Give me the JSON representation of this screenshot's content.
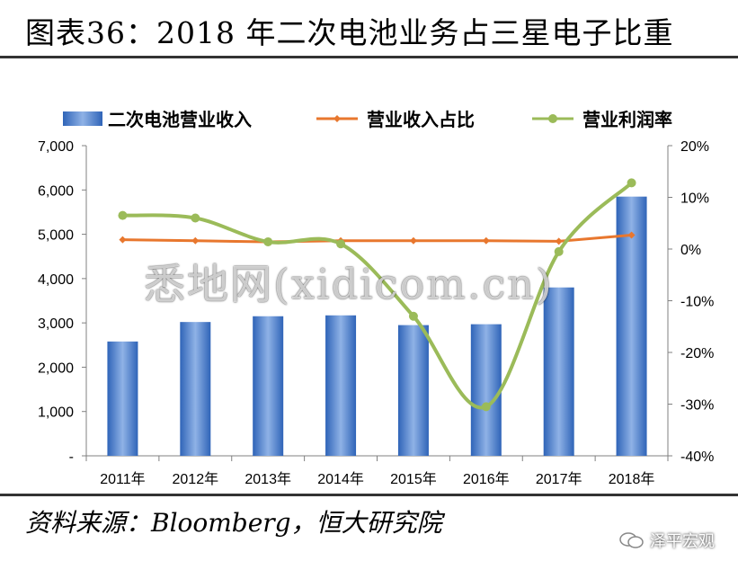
{
  "header": {
    "title": "图表36：2018 年二次电池业务占三星电子比重"
  },
  "footer": {
    "source": "资料来源：Bloomberg，恒大研究院",
    "brand": "泽平宏观"
  },
  "watermark": "悉地网(xidicom.cn)",
  "colors": {
    "bar": "#3f78c8",
    "share": "#e8772e",
    "margin": "#9bbb59"
  },
  "chart_data": {
    "type": "bar",
    "categories": [
      "2011年",
      "2012年",
      "2013年",
      "2014年",
      "2015年",
      "2016年",
      "2017年",
      "2018年"
    ],
    "series": [
      {
        "name": "二次电池营业收入",
        "type": "bar",
        "axis": "left",
        "values": [
          2580,
          3020,
          3150,
          3170,
          2950,
          2970,
          3800,
          5850
        ]
      },
      {
        "name": "营业收入占比",
        "type": "line",
        "axis": "right",
        "values": [
          1.8,
          1.6,
          1.4,
          1.6,
          1.6,
          1.6,
          1.5,
          2.7
        ]
      },
      {
        "name": "营业利润率",
        "type": "line",
        "axis": "right",
        "smooth": true,
        "values": [
          6.5,
          6.0,
          1.4,
          1.0,
          -13.0,
          -30.5,
          -0.5,
          12.8
        ]
      }
    ],
    "y_left": {
      "ylim": [
        0,
        7000
      ],
      "ticks": [
        "-",
        "1,000",
        "2,000",
        "3,000",
        "4,000",
        "5,000",
        "6,000",
        "7,000"
      ]
    },
    "y_right": {
      "ylim": [
        -40,
        20
      ],
      "ticks": [
        "-40%",
        "-30%",
        "-20%",
        "-10%",
        "0%",
        "10%",
        "20%"
      ]
    },
    "legend": "top",
    "grid": false
  }
}
